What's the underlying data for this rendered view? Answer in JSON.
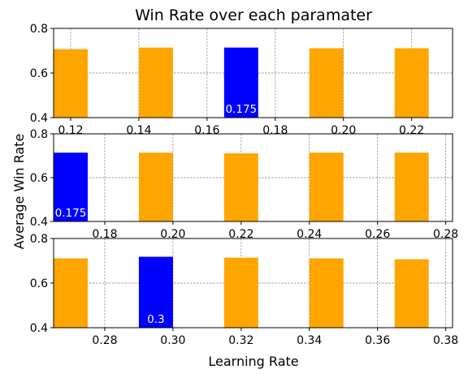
{
  "title": "Win Rate over each paramater",
  "ylabel": "Average Win Rate",
  "xlabel": "Learning Rate",
  "colors": {
    "default": "#FFA500",
    "highlight": "#0000FF",
    "grid": "#808080"
  },
  "chart_data": [
    {
      "type": "bar",
      "x": [
        0.12,
        0.145,
        0.17,
        0.195,
        0.22
      ],
      "values": [
        0.707,
        0.714,
        0.714,
        0.711,
        0.711
      ],
      "highlight_index": 2,
      "highlight_label": "0.175",
      "ylim": [
        0.4,
        0.8
      ],
      "xlim": [
        0.115,
        0.232
      ],
      "bar_width": 0.01,
      "xticks": [
        0.12,
        0.14,
        0.16,
        0.18,
        0.2,
        0.22
      ],
      "xtick_labels": [
        "0.12",
        "0.14",
        "0.16",
        "0.18",
        "0.20",
        "0.22"
      ],
      "yticks": [
        0.4,
        0.6,
        0.8
      ],
      "ytick_labels": [
        "0.4",
        "0.6",
        "0.8"
      ],
      "grid": true
    },
    {
      "type": "bar",
      "x": [
        0.17,
        0.195,
        0.22,
        0.245,
        0.27
      ],
      "values": [
        0.714,
        0.714,
        0.711,
        0.714,
        0.714
      ],
      "highlight_index": 0,
      "highlight_label": "0.175",
      "ylim": [
        0.4,
        0.8
      ],
      "xlim": [
        0.165,
        0.282
      ],
      "bar_width": 0.01,
      "xticks": [
        0.18,
        0.2,
        0.22,
        0.24,
        0.26,
        0.28
      ],
      "xtick_labels": [
        "0.18",
        "0.20",
        "0.22",
        "0.24",
        "0.26",
        "0.28"
      ],
      "yticks": [
        0.4,
        0.6,
        0.8
      ],
      "ytick_labels": [
        "0.4",
        "0.6",
        "0.8"
      ],
      "grid": true
    },
    {
      "type": "bar",
      "x": [
        0.27,
        0.295,
        0.32,
        0.345,
        0.37
      ],
      "values": [
        0.711,
        0.718,
        0.714,
        0.711,
        0.707
      ],
      "highlight_index": 1,
      "highlight_label": "0.3",
      "ylim": [
        0.4,
        0.8
      ],
      "xlim": [
        0.265,
        0.382
      ],
      "bar_width": 0.01,
      "xticks": [
        0.28,
        0.3,
        0.32,
        0.34,
        0.36,
        0.38
      ],
      "xtick_labels": [
        "0.28",
        "0.30",
        "0.32",
        "0.34",
        "0.36",
        "0.38"
      ],
      "yticks": [
        0.4,
        0.6,
        0.8
      ],
      "ytick_labels": [
        "0.4",
        "0.6",
        "0.8"
      ],
      "grid": true
    }
  ]
}
